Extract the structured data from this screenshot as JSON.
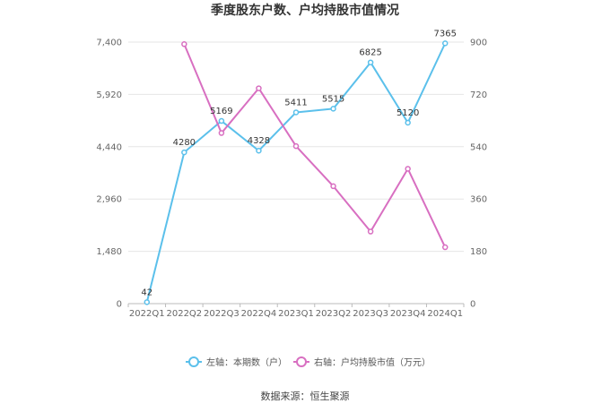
{
  "colors": {
    "left_series": "#5bc0eb",
    "right_series": "#d86fc1",
    "grid": "#e6e6e6",
    "axis": "#bbbbbb"
  },
  "source_text": "数据来源：恒生聚源",
  "chart_data": {
    "type": "line",
    "title": "季度股东户数、户均持股市值情况",
    "categories": [
      "2022Q1",
      "2022Q2",
      "2022Q3",
      "2022Q4",
      "2023Q1",
      "2023Q2",
      "2023Q3",
      "2023Q4",
      "2024Q1"
    ],
    "y_left": {
      "ticks": [
        "0",
        "1,480",
        "2,960",
        "4,440",
        "5,920",
        "7,400"
      ],
      "lim": [
        0,
        7400
      ]
    },
    "y_right": {
      "ticks": [
        "0",
        "180",
        "360",
        "540",
        "720",
        "900"
      ],
      "lim": [
        0,
        900
      ]
    },
    "grid": true,
    "legend_position": "bottom",
    "series": [
      {
        "name": "左轴：本期数（户）",
        "axis": "left",
        "values": [
          42,
          4280,
          5169,
          4328,
          5411,
          5515,
          6825,
          5120,
          7365
        ],
        "labels": [
          "42",
          "4280",
          "5169",
          "4328",
          "5411",
          "5515",
          "6825",
          "5120",
          "7365"
        ]
      },
      {
        "name": "右轴：户均持股市值（万元）",
        "axis": "right",
        "values": [
          null,
          893,
          587,
          741,
          542,
          404,
          248,
          464,
          194
        ]
      }
    ]
  }
}
